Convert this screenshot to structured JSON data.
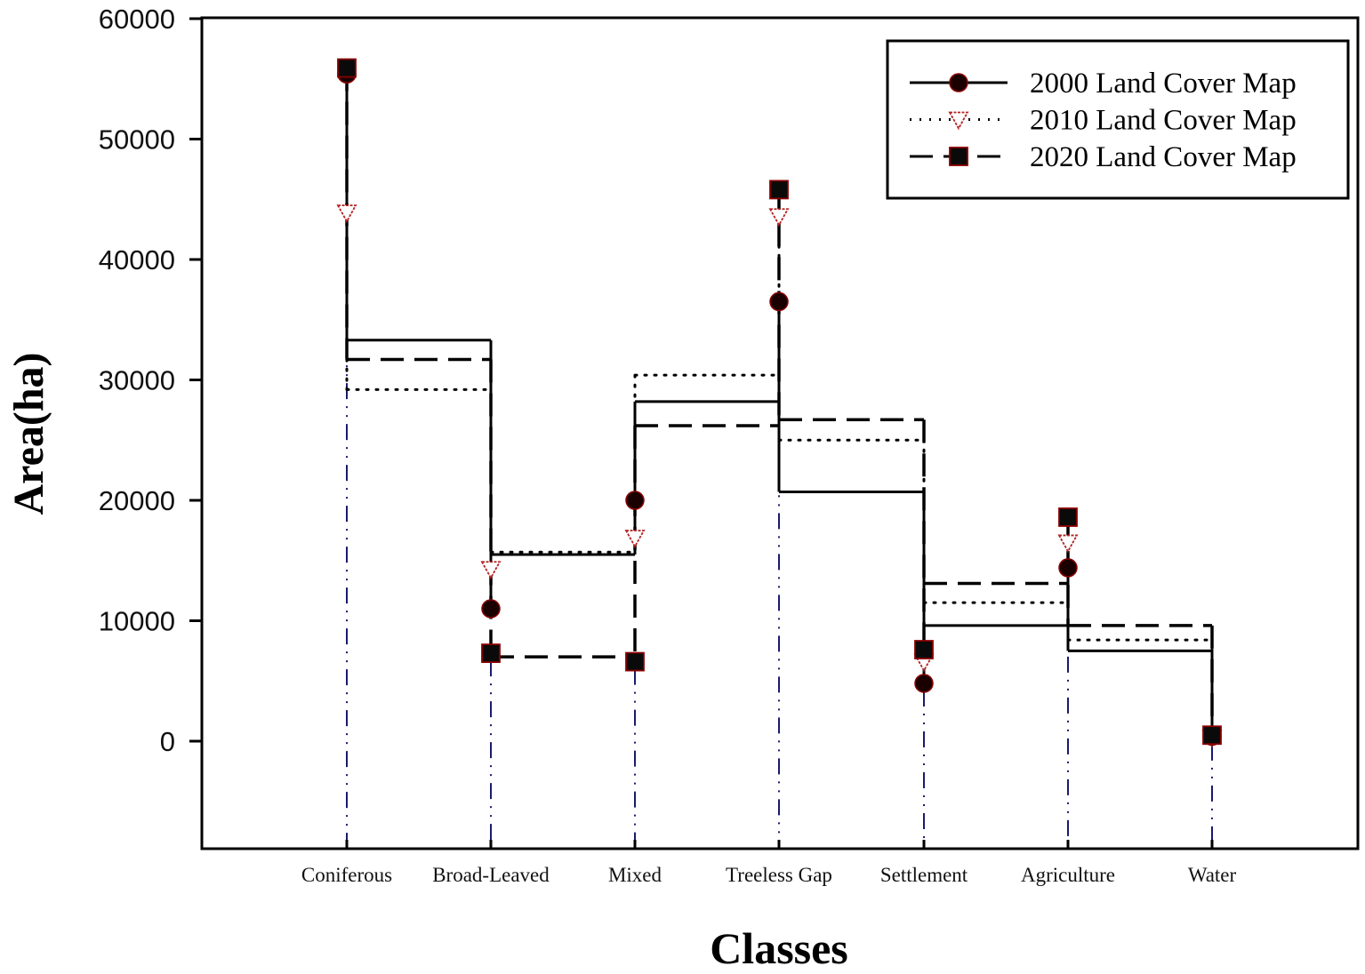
{
  "chart_data": {
    "type": "line",
    "subtype": "step-with-markers",
    "title": "",
    "xlabel": "Classes",
    "ylabel": "Area(ha)",
    "ylim": [
      -9000,
      60000
    ],
    "yticks": [
      0,
      10000,
      20000,
      30000,
      40000,
      50000,
      60000
    ],
    "ytick_labels": [
      "0",
      "10000",
      "20000",
      "30000",
      "40000",
      "50000",
      "60000"
    ],
    "grid": false,
    "legend_position": "upper right",
    "categories": [
      "Coniferous",
      "Broad-Leaved",
      "Mixed",
      "Treeless Gap",
      "Settlement",
      "Agriculture",
      "Water"
    ],
    "series": [
      {
        "name": "2000 Land Cover Map",
        "line_style": "solid",
        "marker": "filled-circle",
        "marker_color": "#1a0000",
        "marker_edge": "#8b0000",
        "values": [
          55400,
          11000,
          20000,
          36500,
          4800,
          14400,
          400
        ],
        "step_levels": [
          33300,
          15500,
          28200,
          20700,
          9600,
          7500
        ]
      },
      {
        "name": "2010 Land Cover Map",
        "line_style": "dotted",
        "marker": "open-triangle-down",
        "marker_color": "#ffffff",
        "marker_edge": "#b22222",
        "values": [
          43900,
          14300,
          16900,
          43600,
          6600,
          16500,
          300
        ],
        "step_levels": [
          29200,
          15700,
          30400,
          25000,
          11500,
          8400
        ]
      },
      {
        "name": "2020 Land Cover Map",
        "line_style": "dashed",
        "marker": "filled-square",
        "marker_color": "#0a0a0a",
        "marker_edge": "#8b0000",
        "values": [
          55900,
          7300,
          6600,
          45800,
          7600,
          18600,
          500
        ],
        "step_levels": [
          31700,
          7000,
          26200,
          26700,
          13100,
          9600
        ]
      }
    ],
    "drop_lines": {
      "color": "#1a1a6e",
      "style": "dash-dot-dot"
    }
  },
  "legend": {
    "items": [
      {
        "label": "2000 Land Cover Map"
      },
      {
        "label": "2010 Land Cover Map"
      },
      {
        "label": "2020 Land Cover Map"
      }
    ]
  },
  "axes": {
    "x_title": "Classes",
    "y_title": "Area(ha)"
  }
}
